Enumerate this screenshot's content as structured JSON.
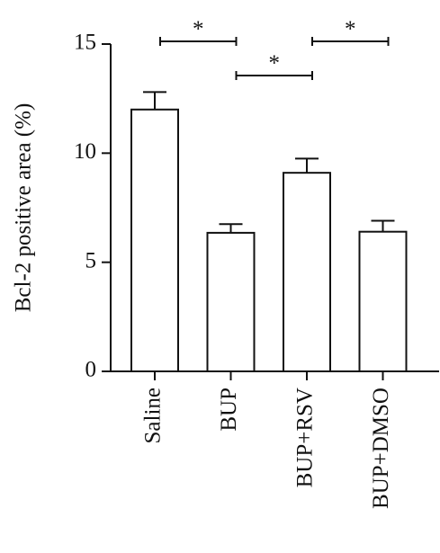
{
  "chart_data": {
    "type": "bar",
    "y_label": "Bcl-2 positive area (%)",
    "categories": [
      "Saline",
      "BUP",
      "BUP+RSV",
      "BUP+DMSO"
    ],
    "values": [
      12.0,
      6.35,
      9.1,
      6.4
    ],
    "errors": [
      0.8,
      0.4,
      0.65,
      0.5
    ],
    "color": "#ffffff",
    "ylim": [
      0,
      15
    ],
    "yticks": [
      0,
      5,
      10,
      15
    ],
    "significance": [
      {
        "groups": [
          0,
          1
        ],
        "label": "*"
      },
      {
        "groups": [
          1,
          2
        ],
        "label": "*"
      },
      {
        "groups": [
          2,
          3
        ],
        "label": "*"
      }
    ]
  }
}
